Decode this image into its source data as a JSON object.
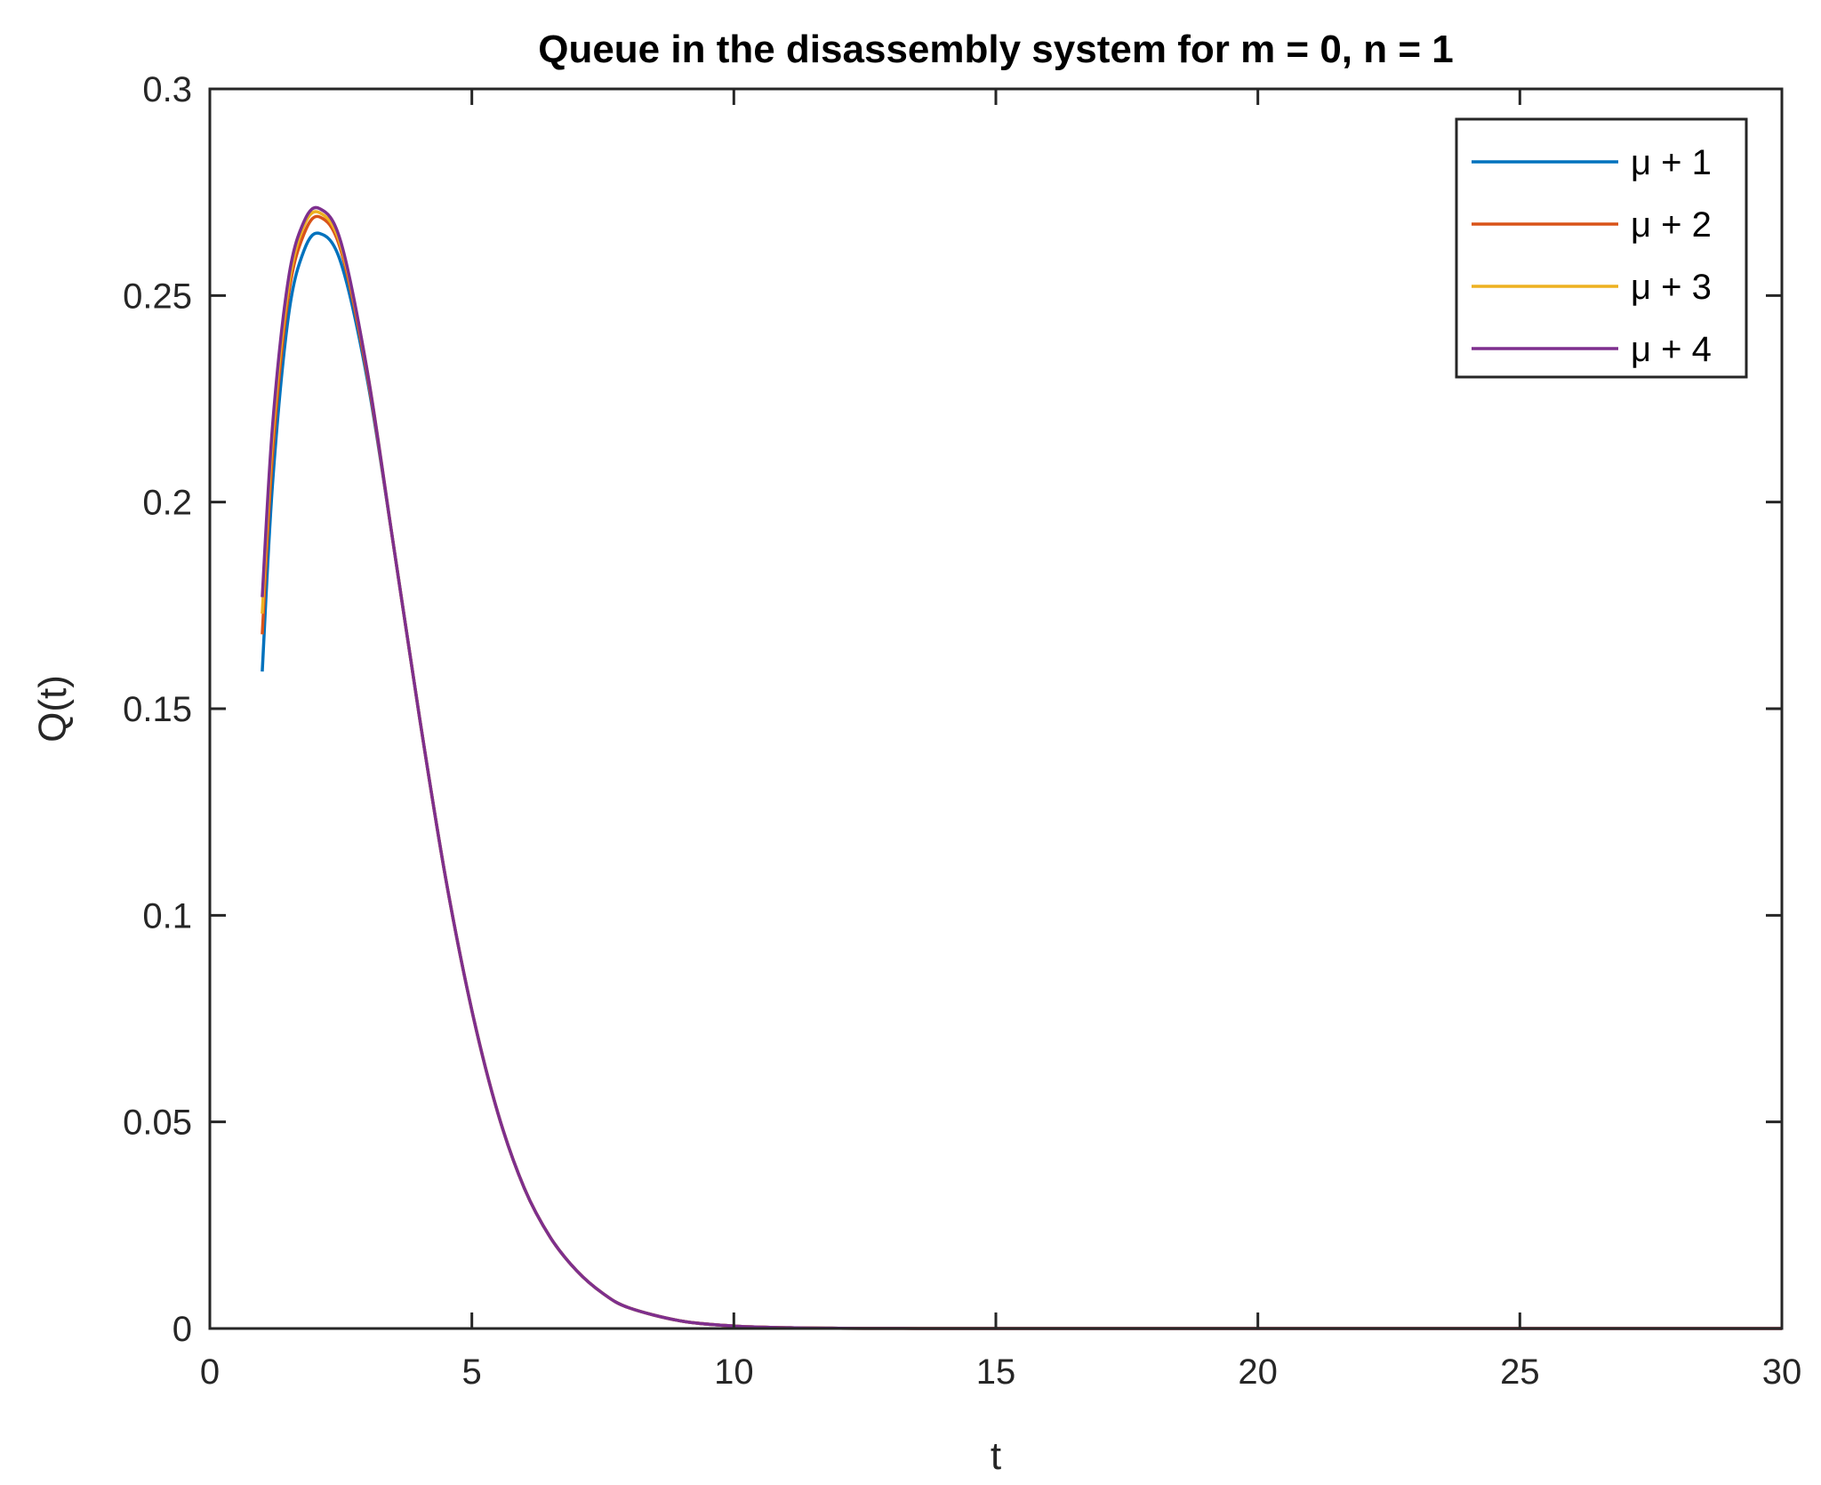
{
  "chart_data": {
    "type": "line",
    "title": "Queue in the disassembly system for m = 0, n = 1",
    "xlabel": "t",
    "ylabel": "Q(t)",
    "xlim": [
      0,
      30
    ],
    "ylim": [
      0,
      0.3
    ],
    "xticks": [
      0,
      5,
      10,
      15,
      20,
      25,
      30
    ],
    "yticks": [
      0,
      0.05,
      0.1,
      0.15,
      0.2,
      0.25,
      0.3
    ],
    "xtick_labels": [
      "0",
      "5",
      "10",
      "15",
      "20",
      "25",
      "30"
    ],
    "ytick_labels": [
      "0",
      "0.05",
      "0.1",
      "0.15",
      "0.2",
      "0.25",
      "0.3"
    ],
    "grid": false,
    "box": true,
    "legend_position": "top-right",
    "series": [
      {
        "name": "μ + 1",
        "color": "#0072BD",
        "x": [
          1,
          1.2,
          1.5,
          1.8,
          2.1,
          2.5,
          3,
          3.5,
          4,
          4.5,
          5,
          5.5,
          6,
          6.5,
          7,
          7.5,
          8,
          9,
          10,
          11,
          12,
          13,
          14,
          15,
          30
        ],
        "y": [
          0.159,
          0.205,
          0.245,
          0.261,
          0.265,
          0.258,
          0.23,
          0.19,
          0.148,
          0.109,
          0.077,
          0.052,
          0.034,
          0.022,
          0.014,
          0.0085,
          0.005,
          0.0018,
          0.0006,
          0.0002,
          6e-05,
          2e-05,
          5e-06,
          0.0,
          0.0
        ]
      },
      {
        "name": "μ + 2",
        "color": "#D95319",
        "x": [
          1,
          1.2,
          1.5,
          1.8,
          2.1,
          2.5,
          3,
          3.5,
          4,
          4.5,
          5,
          5.5,
          6,
          6.5,
          7,
          7.5,
          8,
          9,
          10,
          11,
          12,
          13,
          14,
          15,
          30
        ],
        "y": [
          0.168,
          0.212,
          0.25,
          0.265,
          0.269,
          0.261,
          0.231,
          0.19,
          0.148,
          0.109,
          0.077,
          0.052,
          0.034,
          0.022,
          0.014,
          0.0085,
          0.005,
          0.0018,
          0.0006,
          0.0002,
          6e-05,
          2e-05,
          5e-06,
          0.0,
          0.0
        ]
      },
      {
        "name": "μ + 3",
        "color": "#EDB120",
        "x": [
          1,
          1.2,
          1.5,
          1.8,
          2.1,
          2.5,
          3,
          3.5,
          4,
          4.5,
          5,
          5.5,
          6,
          6.5,
          7,
          7.5,
          8,
          9,
          10,
          11,
          12,
          13,
          14,
          15,
          30
        ],
        "y": [
          0.173,
          0.216,
          0.252,
          0.267,
          0.27,
          0.262,
          0.232,
          0.19,
          0.148,
          0.109,
          0.077,
          0.052,
          0.034,
          0.022,
          0.014,
          0.0085,
          0.005,
          0.0018,
          0.0006,
          0.0002,
          6e-05,
          2e-05,
          5e-06,
          0.0,
          0.0
        ]
      },
      {
        "name": "μ + 4",
        "color": "#7E2F8E",
        "x": [
          1,
          1.2,
          1.5,
          1.8,
          2.1,
          2.5,
          3,
          3.5,
          4,
          4.5,
          5,
          5.5,
          6,
          6.5,
          7,
          7.5,
          8,
          9,
          10,
          11,
          12,
          13,
          14,
          15,
          30
        ],
        "y": [
          0.177,
          0.219,
          0.254,
          0.268,
          0.271,
          0.263,
          0.232,
          0.19,
          0.148,
          0.109,
          0.077,
          0.052,
          0.034,
          0.022,
          0.014,
          0.0085,
          0.005,
          0.0018,
          0.0006,
          0.0002,
          6e-05,
          2e-05,
          5e-06,
          0.0,
          0.0
        ]
      }
    ]
  }
}
